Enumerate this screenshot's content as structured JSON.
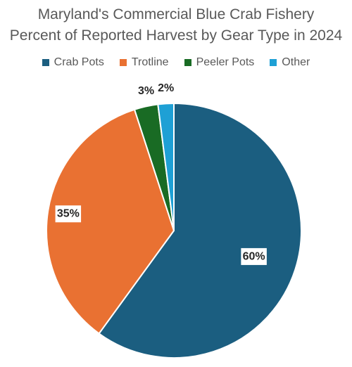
{
  "chart_data": {
    "type": "pie",
    "title_line1": "Maryland's Commercial Blue Crab Fishery",
    "title_line2": "Percent of Reported Harvest by Gear Type in 2024",
    "slices": [
      {
        "name": "Crab Pots",
        "value": 60,
        "label": "60%",
        "color": "#1b5e80"
      },
      {
        "name": "Trotline",
        "value": 35,
        "label": "35%",
        "color": "#e97132"
      },
      {
        "name": "Peeler Pots",
        "value": 3,
        "label": "3%",
        "color": "#196b24"
      },
      {
        "name": "Other",
        "value": 2,
        "label": "2%",
        "color": "#1ea0d5"
      }
    ],
    "legend_position": "top"
  }
}
